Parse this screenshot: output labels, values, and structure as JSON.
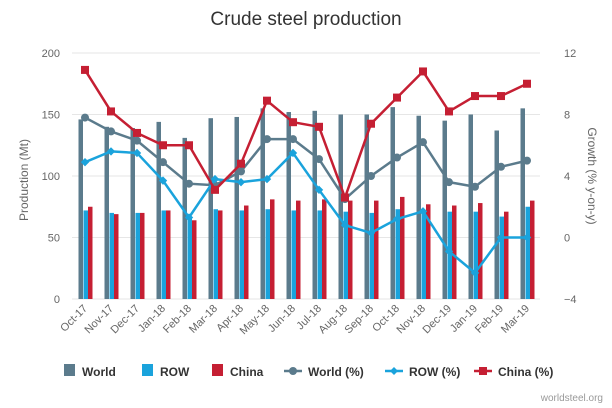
{
  "chart_data": {
    "type": "bar",
    "title": "Crude steel production",
    "source": "worldsteel.org",
    "categories": [
      "Oct-17",
      "Nov-17",
      "Dec-17",
      "Jan-18",
      "Feb-18",
      "Mar-18",
      "Apr-18",
      "May-18",
      "Jun-18",
      "Jul-18",
      "Aug-18",
      "Sep-18",
      "Oct-18",
      "Nov-18",
      "Dec-19",
      "Jan-19",
      "Feb-19",
      "Mar-19"
    ],
    "ylabel": "Production (Mt)",
    "y2label": "Growth (% y-on-y)",
    "ylim": [
      0,
      200
    ],
    "y2lim": [
      -4,
      12
    ],
    "yticks": [
      "0",
      "50",
      "100",
      "150",
      "200"
    ],
    "y2ticks": [
      "−4",
      "0",
      "4",
      "8",
      "12"
    ],
    "grid": true,
    "legend_position": "bottom",
    "series": [
      {
        "name": "World",
        "kind": "bar",
        "axis": "left",
        "color": "#5b7b8c",
        "values": [
          146,
          140,
          139,
          144,
          131,
          147,
          148,
          155,
          152,
          153,
          150,
          150,
          156,
          149,
          145,
          150,
          137,
          155
        ]
      },
      {
        "name": "ROW",
        "kind": "bar",
        "axis": "left",
        "color": "#1aa3dc",
        "values": [
          72,
          70,
          70,
          72,
          67,
          73,
          72,
          73,
          72,
          72,
          71,
          70,
          73,
          72,
          71,
          71,
          67,
          75
        ]
      },
      {
        "name": "China",
        "kind": "bar",
        "axis": "left",
        "color": "#c51f33",
        "values": [
          75,
          69,
          70,
          72,
          64,
          72,
          76,
          81,
          80,
          81,
          80,
          80,
          83,
          77,
          76,
          78,
          71,
          80
        ]
      },
      {
        "name": "World (%)",
        "kind": "line",
        "axis": "right",
        "color": "#5b7b8c",
        "marker": "circle",
        "values": [
          7.8,
          6.9,
          6.3,
          4.9,
          3.5,
          3.4,
          4.3,
          6.4,
          6.4,
          5.1,
          2.5,
          4.0,
          5.2,
          6.2,
          3.6,
          3.3,
          4.6,
          5.0
        ]
      },
      {
        "name": "ROW (%)",
        "kind": "line",
        "axis": "right",
        "color": "#1aa3dc",
        "marker": "diamond",
        "values": [
          4.9,
          5.6,
          5.5,
          3.7,
          1.3,
          3.8,
          3.6,
          3.8,
          5.5,
          3.1,
          0.8,
          0.3,
          1.2,
          1.7,
          -0.9,
          -2.3,
          0.0,
          0.0
        ]
      },
      {
        "name": "China (%)",
        "kind": "line",
        "axis": "right",
        "color": "#c51f33",
        "marker": "square",
        "values": [
          10.9,
          8.2,
          6.8,
          6.0,
          6.0,
          3.1,
          4.8,
          8.9,
          7.5,
          7.2,
          2.6,
          7.4,
          9.1,
          10.8,
          8.2,
          9.2,
          9.2,
          10.0
        ]
      }
    ]
  }
}
